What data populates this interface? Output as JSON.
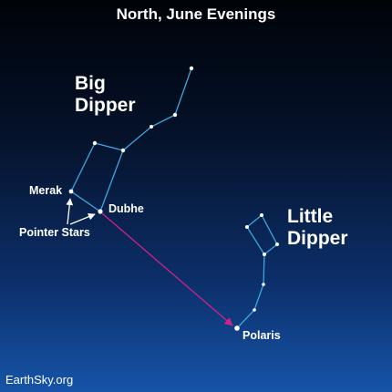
{
  "title": "North, June Evenings",
  "big_dipper": {
    "label_line1": "Big",
    "label_line2": "Dipper"
  },
  "little_dipper": {
    "label_line1": "Little",
    "label_line2": "Dipper"
  },
  "stars": {
    "merak": "Merak",
    "dubhe": "Dubhe",
    "polaris": "Polaris"
  },
  "pointer_stars": "Pointer Stars",
  "credit": "EarthSky.org",
  "colors": {
    "constellation_line": "#3ea6e0",
    "pointer_arrow": "#d0228a",
    "star": "#ffffff",
    "sky_top": "#000308",
    "sky_bottom": "#1654a8"
  }
}
